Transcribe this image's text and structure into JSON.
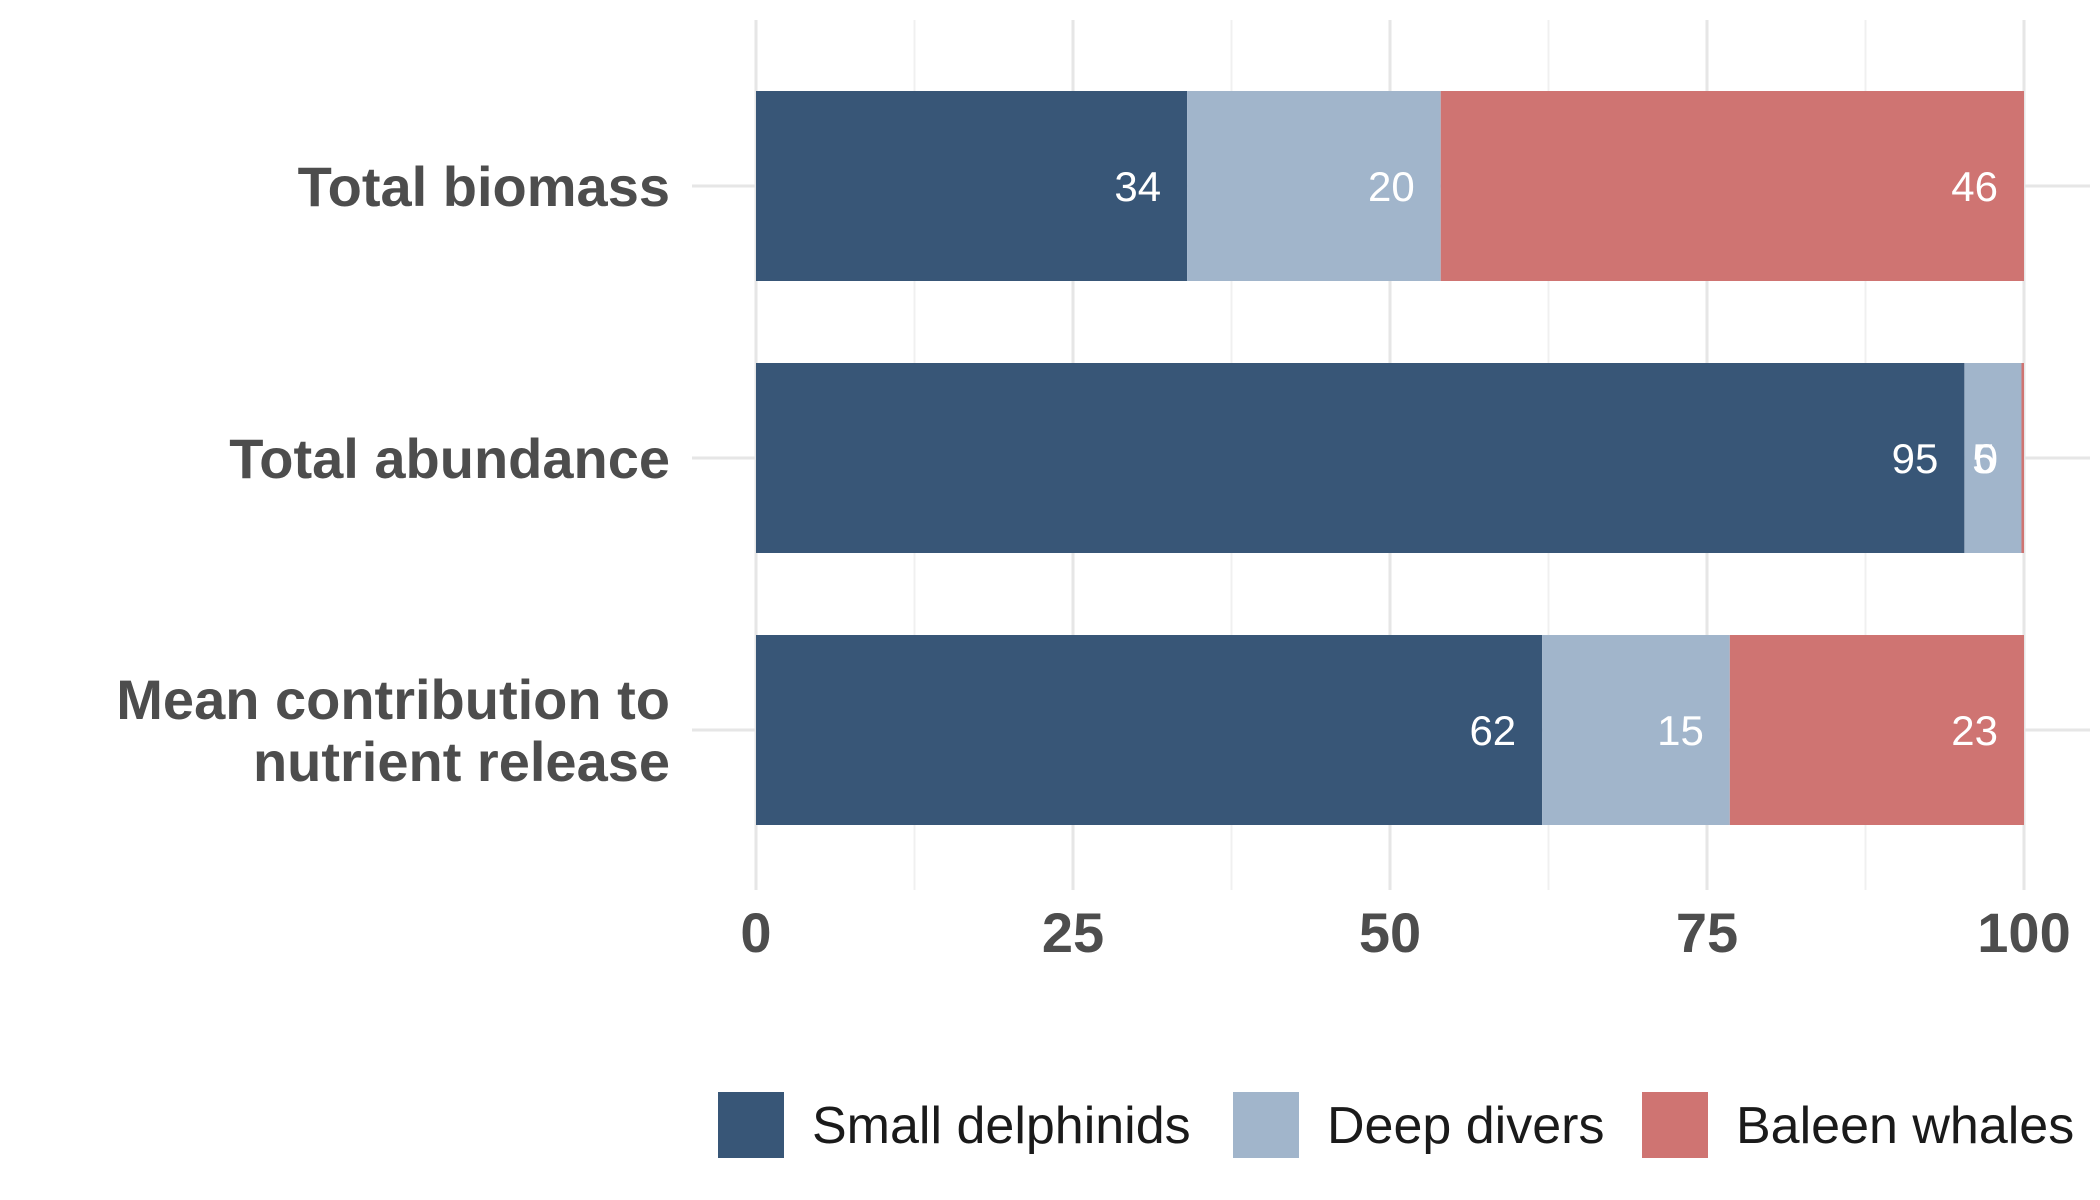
{
  "chart_data": {
    "type": "bar",
    "orientation": "horizontal",
    "stacked": true,
    "title": "",
    "xlabel": "",
    "ylabel": "",
    "xlim": [
      0,
      100
    ],
    "x_ticks": [
      "0",
      "25",
      "50",
      "75",
      "100"
    ],
    "grid": true,
    "legend_position": "bottom",
    "categories": [
      [
        "Total biomass"
      ],
      [
        "Total abundance"
      ],
      [
        "Mean contribution to",
        "nutrient release"
      ]
    ],
    "series": [
      {
        "name": "Small delphinids",
        "color": "#385677",
        "values": [
          34,
          95.3,
          62
        ],
        "labels": [
          "34",
          "95",
          "62"
        ]
      },
      {
        "name": "Deep divers",
        "color": "#a1b5cb",
        "values": [
          20,
          4.5,
          14.8
        ],
        "labels": [
          "20",
          "5",
          "15"
        ]
      },
      {
        "name": "Baleen whales",
        "color": "#cf7472",
        "values": [
          46,
          0.2,
          23.2
        ],
        "labels": [
          "46",
          "0",
          "23"
        ]
      }
    ]
  }
}
